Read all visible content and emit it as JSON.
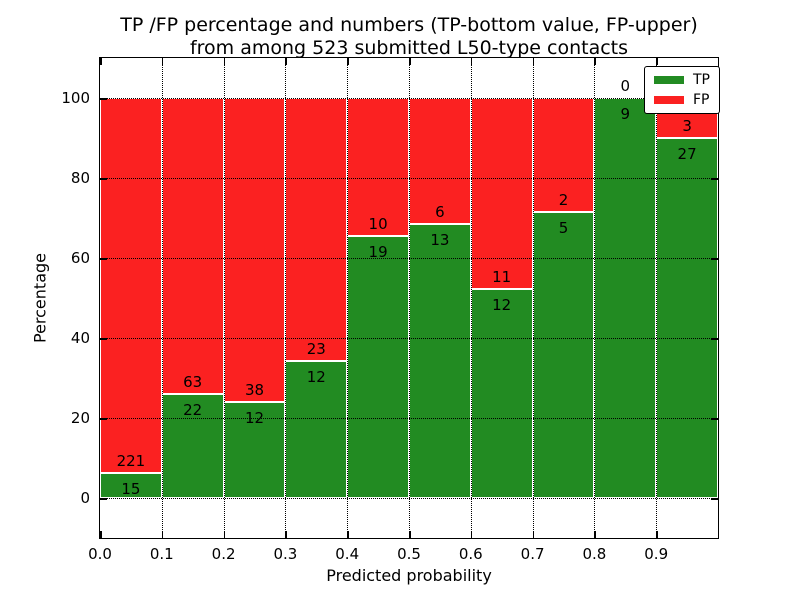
{
  "title": {
    "line1": "TP /FP percentage and numbers (TP-bottom value, FP-upper)",
    "line2": "from among 523 submitted L50-type contacts"
  },
  "axes": {
    "xlabel": "Predicted probability",
    "ylabel": "Percentage",
    "x_ticks": [
      "0.0",
      "0.1",
      "0.2",
      "0.3",
      "0.4",
      "0.5",
      "0.6",
      "0.7",
      "0.8",
      "0.9"
    ],
    "y_ticks": [
      "0",
      "20",
      "40",
      "60",
      "80",
      "100"
    ],
    "y_tick_values": [
      0,
      20,
      40,
      60,
      80,
      100
    ]
  },
  "legend": [
    {
      "label": "TP",
      "color": "#228b22"
    },
    {
      "label": "FP",
      "color": "#fb2121"
    }
  ],
  "colors": {
    "tp": "#228b22",
    "fp": "#fb2121",
    "background": "#ffffff",
    "grid": "#000000"
  },
  "chart_data": {
    "type": "bar",
    "subtype": "stacked-percentage-histogram",
    "title": "TP /FP percentage and numbers (TP-bottom value, FP-upper) from among 523 submitted L50-type contacts",
    "xlabel": "Predicted probability",
    "ylabel": "Percentage",
    "xlim": [
      0.0,
      1.0
    ],
    "ylim": [
      -10,
      110
    ],
    "grid": "dotted",
    "legend_position": "upper right",
    "total_contacts": 523,
    "bin_width": 0.1,
    "categories": [
      "0.0-0.1",
      "0.1-0.2",
      "0.2-0.3",
      "0.3-0.4",
      "0.4-0.5",
      "0.5-0.6",
      "0.6-0.7",
      "0.7-0.8",
      "0.8-0.9",
      "0.9-1.0"
    ],
    "series": [
      {
        "name": "TP",
        "color": "#228b22",
        "counts": [
          15,
          22,
          12,
          12,
          19,
          13,
          12,
          5,
          9,
          27
        ]
      },
      {
        "name": "FP",
        "color": "#fb2121",
        "counts": [
          221,
          63,
          38,
          23,
          10,
          6,
          11,
          2,
          0,
          3
        ]
      }
    ],
    "bins": [
      {
        "x0": 0.0,
        "x1": 0.1,
        "tp": 15,
        "fp": 221,
        "tp_pct": 6.36,
        "fp_pct": 93.64
      },
      {
        "x0": 0.1,
        "x1": 0.2,
        "tp": 22,
        "fp": 63,
        "tp_pct": 25.88,
        "fp_pct": 74.12
      },
      {
        "x0": 0.2,
        "x1": 0.3,
        "tp": 12,
        "fp": 38,
        "tp_pct": 24.0,
        "fp_pct": 76.0
      },
      {
        "x0": 0.3,
        "x1": 0.4,
        "tp": 12,
        "fp": 23,
        "tp_pct": 34.29,
        "fp_pct": 65.71
      },
      {
        "x0": 0.4,
        "x1": 0.5,
        "tp": 19,
        "fp": 10,
        "tp_pct": 65.52,
        "fp_pct": 34.48
      },
      {
        "x0": 0.5,
        "x1": 0.6,
        "tp": 13,
        "fp": 6,
        "tp_pct": 68.42,
        "fp_pct": 31.58
      },
      {
        "x0": 0.6,
        "x1": 0.7,
        "tp": 12,
        "fp": 11,
        "tp_pct": 52.17,
        "fp_pct": 47.83
      },
      {
        "x0": 0.7,
        "x1": 0.8,
        "tp": 5,
        "fp": 2,
        "tp_pct": 71.43,
        "fp_pct": 28.57
      },
      {
        "x0": 0.8,
        "x1": 0.9,
        "tp": 9,
        "fp": 0,
        "tp_pct": 100.0,
        "fp_pct": 0.0
      },
      {
        "x0": 0.9,
        "x1": 1.0,
        "tp": 27,
        "fp": 3,
        "tp_pct": 90.0,
        "fp_pct": 10.0
      }
    ]
  }
}
